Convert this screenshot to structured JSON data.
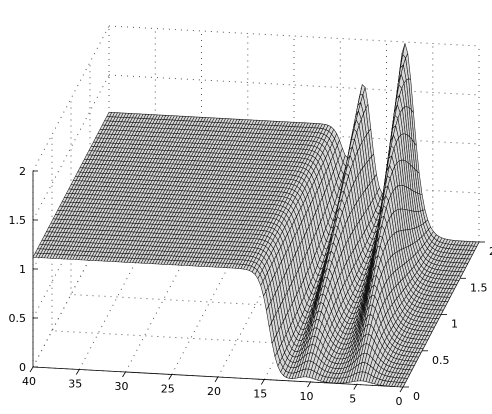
{
  "chart_data": {
    "type": "surface",
    "title": "",
    "xlabel": "",
    "ylabel": "",
    "zlabel": "",
    "grid": true,
    "x_axis": {
      "range": [
        0,
        40
      ],
      "ticks": [
        0,
        5,
        10,
        15,
        20,
        25,
        30,
        35,
        40
      ],
      "tick_labels": [
        "0",
        "5",
        "10",
        "15",
        "20",
        "25",
        "30",
        "35",
        "40"
      ]
    },
    "y_axis": {
      "range": [
        0,
        2
      ],
      "ticks": [
        0,
        0.5,
        1,
        1.5,
        2
      ],
      "tick_labels": [
        "0",
        "0.5",
        "1",
        "1.5",
        "2"
      ]
    },
    "z_axis": {
      "range": [
        0,
        2
      ],
      "ticks": [
        0,
        0.5,
        1,
        1.5,
        2
      ],
      "tick_labels": [
        "0",
        "0.5",
        "1",
        "1.5",
        "2"
      ]
    },
    "surface_description": {
      "plateau_height": 1.12,
      "plateau_x_range": [
        14.5,
        40
      ],
      "peaks": [
        {
          "x_at_y0": 10.5,
          "x_at_y2": 12.5,
          "height_at_y0": 0.05,
          "height_at_y2": 1.52
        },
        {
          "x_at_y0": 4.5,
          "x_at_y2": 8.0,
          "height_at_y0": 0.04,
          "height_at_y2": 1.98
        }
      ]
    }
  }
}
